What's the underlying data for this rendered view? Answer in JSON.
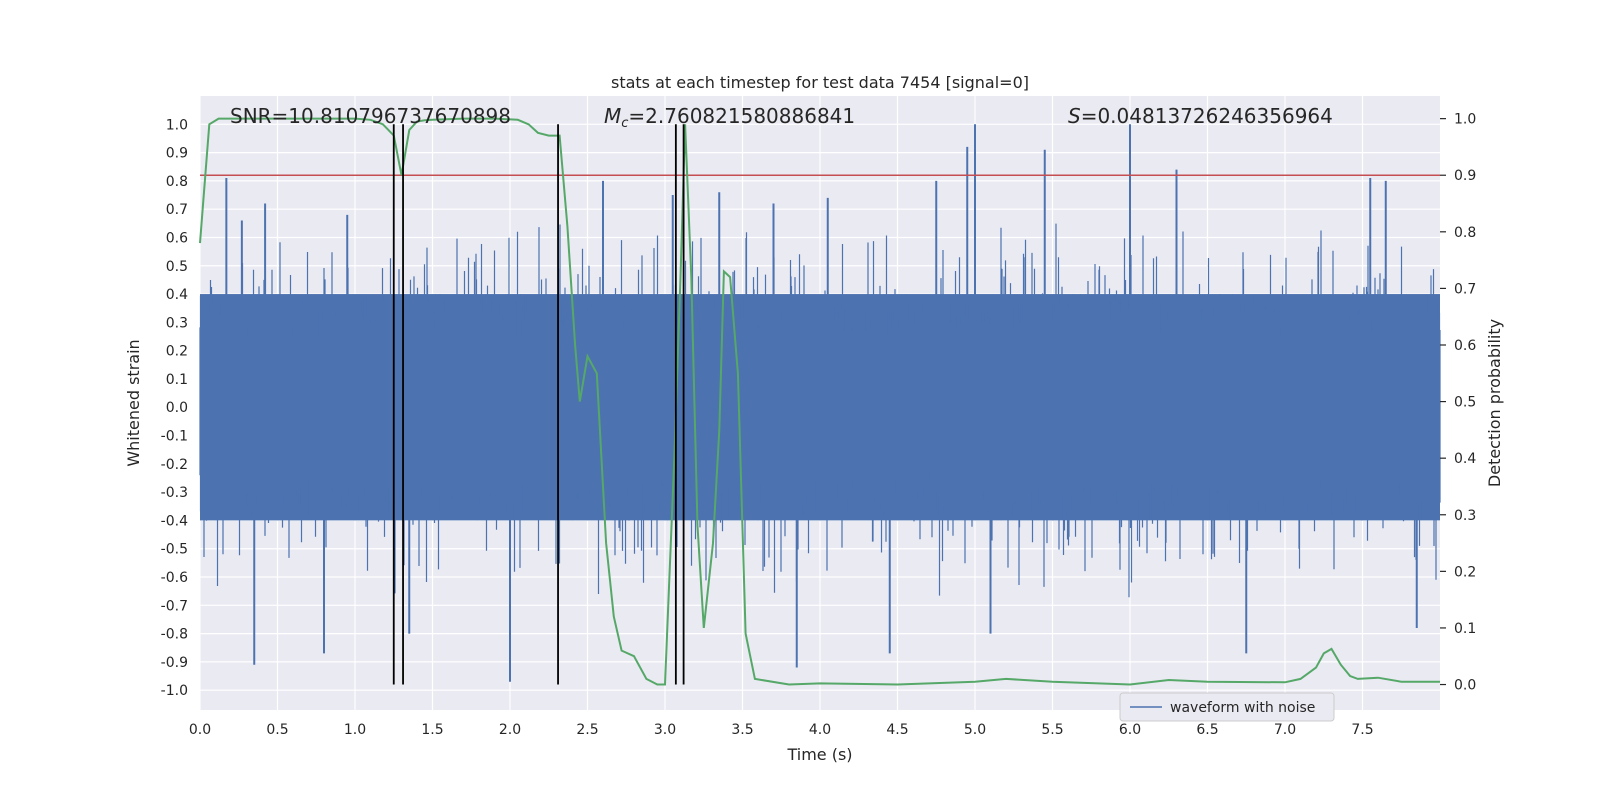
{
  "chart_data": {
    "type": "line",
    "title": "stats at each timestep for test data 7454 [signal=0]",
    "xlabel": "Time (s)",
    "ylabel_left": "Whitened strain",
    "ylabel_right": "Detection probability",
    "xlim": [
      0.0,
      8.0
    ],
    "ylim_left": [
      -1.07,
      1.1
    ],
    "ylim_right": [
      -0.045,
      1.04
    ],
    "x_ticks": [
      0.0,
      0.5,
      1.0,
      1.5,
      2.0,
      2.5,
      3.0,
      3.5,
      4.0,
      4.5,
      5.0,
      5.5,
      6.0,
      6.5,
      7.0,
      7.5
    ],
    "x_tick_labels": [
      "0.0",
      "0.5",
      "1.0",
      "1.5",
      "2.0",
      "2.5",
      "3.0",
      "3.5",
      "4.0",
      "4.5",
      "5.0",
      "5.5",
      "6.0",
      "6.5",
      "7.0",
      "7.5"
    ],
    "y_left_ticks": [
      1.0,
      0.9,
      0.8,
      0.7,
      0.6,
      0.5,
      0.4,
      0.3,
      0.2,
      0.1,
      0.0,
      -0.1,
      -0.2,
      -0.3,
      -0.4,
      -0.5,
      -0.6,
      -0.7,
      -0.8,
      -0.9,
      -1.0
    ],
    "y_left_tick_labels": [
      "1.0",
      "0.9",
      "0.8",
      "0.7",
      "0.6",
      "0.5",
      "0.4",
      "0.3",
      "0.2",
      "0.1",
      "0.0",
      "-0.1",
      "-0.2",
      "-0.3",
      "-0.4",
      "-0.5",
      "-0.6",
      "-0.7",
      "-0.8",
      "-0.9",
      "-1.0"
    ],
    "y_right_ticks": [
      1.0,
      0.9,
      0.8,
      0.7,
      0.6,
      0.5,
      0.4,
      0.3,
      0.2,
      0.1,
      0.0
    ],
    "y_right_tick_labels": [
      "1.0",
      "0.9",
      "0.8",
      "0.7",
      "0.6",
      "0.5",
      "0.4",
      "0.3",
      "0.2",
      "0.1",
      "0.0"
    ],
    "annotations": {
      "snr": "SNR=10.810796737670898",
      "mc_symbol": "M",
      "mc_sub": "c",
      "mc_value": "=2.760821580886841",
      "s_symbol": "S",
      "s_value": "=0.04813726246356964"
    },
    "legend": {
      "label": "waveform with noise",
      "position": "lower-right"
    },
    "waveform": {
      "name": "waveform with noise",
      "color": "#4c72b0",
      "core_amplitude": 0.4,
      "spikes": [
        {
          "t": 0.17,
          "v": 0.81
        },
        {
          "t": 0.27,
          "v": 0.66
        },
        {
          "t": 0.35,
          "v": -0.91
        },
        {
          "t": 0.42,
          "v": 0.72
        },
        {
          "t": 0.8,
          "v": -0.87
        },
        {
          "t": 0.95,
          "v": 0.68
        },
        {
          "t": 1.35,
          "v": -0.8
        },
        {
          "t": 2.0,
          "v": -0.97
        },
        {
          "t": 2.6,
          "v": 0.8
        },
        {
          "t": 3.05,
          "v": 0.75
        },
        {
          "t": 3.35,
          "v": 0.76
        },
        {
          "t": 3.7,
          "v": 0.72
        },
        {
          "t": 3.85,
          "v": -0.92
        },
        {
          "t": 4.05,
          "v": 0.74
        },
        {
          "t": 4.45,
          "v": -0.87
        },
        {
          "t": 4.75,
          "v": 0.8
        },
        {
          "t": 4.95,
          "v": 0.92
        },
        {
          "t": 5.0,
          "v": 1.0
        },
        {
          "t": 5.1,
          "v": -0.8
        },
        {
          "t": 5.45,
          "v": 0.91
        },
        {
          "t": 6.0,
          "v": 1.0
        },
        {
          "t": 6.3,
          "v": 0.84
        },
        {
          "t": 6.75,
          "v": -0.87
        },
        {
          "t": 7.55,
          "v": 0.81
        },
        {
          "t": 7.65,
          "v": 0.8
        },
        {
          "t": 7.85,
          "v": -0.78
        }
      ]
    },
    "detection_probability": {
      "color": "#55a868",
      "x": [
        0.0,
        0.06,
        0.12,
        0.2,
        0.5,
        1.0,
        1.1,
        1.18,
        1.25,
        1.3,
        1.35,
        1.4,
        1.45,
        1.5,
        1.7,
        1.9,
        2.05,
        2.12,
        2.18,
        2.25,
        2.32,
        2.37,
        2.42,
        2.45,
        2.5,
        2.56,
        2.62,
        2.67,
        2.72,
        2.8,
        2.88,
        2.95,
        3.0,
        3.06,
        3.1,
        3.13,
        3.17,
        3.21,
        3.25,
        3.31,
        3.35,
        3.38,
        3.42,
        3.47,
        3.52,
        3.58,
        3.8,
        4.0,
        4.5,
        5.0,
        5.2,
        5.5,
        6.0,
        6.25,
        6.5,
        7.0,
        7.1,
        7.2,
        7.25,
        7.3,
        7.36,
        7.42,
        7.47,
        7.6,
        7.75,
        8.0
      ],
      "y": [
        0.78,
        0.99,
        1.0,
        1.0,
        1.0,
        1.0,
        0.998,
        0.99,
        0.97,
        0.9,
        0.98,
        0.995,
        0.997,
        0.998,
        1.0,
        1.0,
        0.998,
        0.99,
        0.975,
        0.97,
        0.97,
        0.81,
        0.6,
        0.5,
        0.58,
        0.55,
        0.25,
        0.12,
        0.06,
        0.05,
        0.01,
        0.0,
        0.0,
        0.4,
        0.72,
        0.99,
        0.72,
        0.28,
        0.1,
        0.25,
        0.45,
        0.73,
        0.72,
        0.55,
        0.09,
        0.01,
        0.0,
        0.002,
        0.0,
        0.005,
        0.01,
        0.005,
        0.0,
        0.008,
        0.005,
        0.004,
        0.01,
        0.03,
        0.055,
        0.063,
        0.035,
        0.015,
        0.01,
        0.012,
        0.005,
        0.005
      ]
    },
    "threshold_line": {
      "value": 0.9,
      "axis": "right",
      "color": "#c44e52"
    },
    "event_lines": {
      "x": [
        1.25,
        1.31,
        2.31,
        3.07,
        3.12
      ],
      "y_range_left": [
        -0.98,
        1.0
      ],
      "color": "#000000"
    }
  }
}
